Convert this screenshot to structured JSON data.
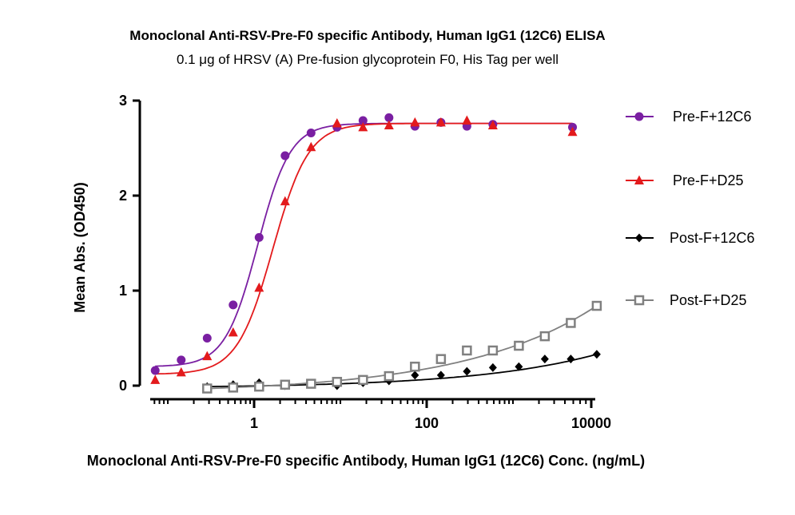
{
  "chart_data": {
    "type": "scatter",
    "title": "Monoclonal Anti-RSV-Pre-F0 specific Antibody, Human IgG1 (12C6) ELISA",
    "subtitle": "0.1 μg of HRSV (A) Pre-fusion glycoprotein F0, His Tag per well",
    "xlabel": "Monoclonal Anti-RSV-Pre-F0 specific Antibody, Human IgG1 (12C6) Conc. (ng/mL)",
    "ylabel": "Mean Abs. (OD450)",
    "x_scale": "log10",
    "xlim": [
      0.0625,
      10000
    ],
    "ylim": [
      0,
      3
    ],
    "x_ticks": [
      1,
      100,
      10000
    ],
    "x_tick_labels": [
      "1",
      "100",
      "10000"
    ],
    "y_ticks": [
      0,
      1,
      2,
      3
    ],
    "y_tick_labels": [
      "0",
      "1",
      "2",
      "3"
    ],
    "legend_position": "right",
    "series": [
      {
        "name": "Pre-F+12C6",
        "color": "#7a1fa2",
        "marker": "circle",
        "x": [
          0.0714,
          0.1429,
          0.2857,
          0.5714,
          1.1429,
          2.2857,
          4.5714,
          9.1429,
          18.2857,
          36.57,
          73.14,
          146.3,
          292.6,
          585.1,
          4900
        ],
        "y": [
          0.16,
          0.27,
          0.5,
          0.85,
          1.56,
          2.42,
          2.66,
          2.72,
          2.79,
          2.82,
          2.73,
          2.77,
          2.73,
          2.75,
          2.72
        ],
        "fit": {
          "bottom": 0.2,
          "top": 2.76,
          "ec50": 1.1,
          "hill": 2.3
        }
      },
      {
        "name": "Pre-F+D25",
        "color": "#e31a1c",
        "marker": "triangle",
        "x": [
          0.0714,
          0.1429,
          0.2857,
          0.5714,
          1.1429,
          2.2857,
          4.5714,
          9.1429,
          18.2857,
          36.57,
          73.14,
          146.3,
          292.6,
          585.1,
          4900
        ],
        "y": [
          0.06,
          0.14,
          0.31,
          0.56,
          1.03,
          1.94,
          2.51,
          2.76,
          2.72,
          2.74,
          2.77,
          2.77,
          2.79,
          2.74,
          2.67
        ],
        "fit": {
          "bottom": 0.12,
          "top": 2.76,
          "ec50": 1.65,
          "hill": 2.1
        }
      },
      {
        "name": "Post-F+12C6",
        "color": "#000000",
        "marker": "diamond",
        "x": [
          0.2857,
          0.5714,
          1.1429,
          2.2857,
          4.5714,
          9.1429,
          18.2857,
          36.57,
          73.14,
          146.3,
          292.6,
          585.1,
          1170,
          2340,
          4680,
          9360
        ],
        "y": [
          -0.01,
          0.01,
          0.03,
          0.0,
          0.02,
          0.0,
          0.03,
          0.05,
          0.11,
          0.11,
          0.15,
          0.19,
          0.2,
          0.28,
          0.28,
          0.33
        ]
      },
      {
        "name": "Post-F+D25",
        "color": "#808080",
        "marker": "square-open",
        "x": [
          0.2857,
          0.5714,
          1.1429,
          2.2857,
          4.5714,
          9.1429,
          18.2857,
          36.57,
          73.14,
          146.3,
          292.6,
          585.1,
          1170,
          2340,
          4680,
          9360
        ],
        "y": [
          -0.03,
          -0.02,
          -0.01,
          0.01,
          0.02,
          0.04,
          0.06,
          0.1,
          0.2,
          0.28,
          0.37,
          0.37,
          0.42,
          0.52,
          0.66,
          0.84
        ]
      }
    ]
  }
}
